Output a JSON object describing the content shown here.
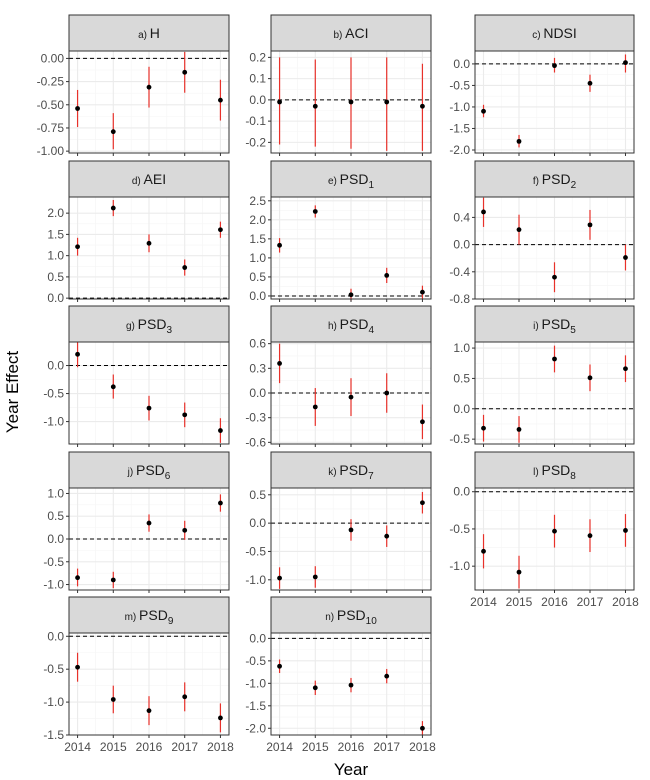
{
  "chart_data": {
    "type": "scatter",
    "title": "",
    "xlabel": "Year",
    "ylabel": "Year Effect",
    "x": [
      "2014",
      "2015",
      "2016",
      "2017",
      "2018"
    ],
    "colors": {
      "point": "#000000",
      "errorbar": "#e8312a",
      "strip_bg": "#d9d9d9",
      "grid_major": "#ebebeb",
      "grid_minor": "#f5f5f5",
      "refline": "#000000"
    },
    "panels": [
      {
        "prefix": "a)",
        "name": "H",
        "sub": "",
        "ylim": [
          -1.02,
          0.08
        ],
        "ticks": [
          0.0,
          -0.25,
          -0.5,
          -0.75,
          -1.0
        ],
        "tick_labels": [
          "0.00",
          "-0.25",
          "-0.50",
          "-0.75",
          "-1.00"
        ],
        "values": [
          -0.54,
          -0.79,
          -0.31,
          -0.15,
          -0.45
        ],
        "lower": [
          -0.74,
          -0.98,
          -0.53,
          -0.37,
          -0.67
        ],
        "upper": [
          -0.34,
          -0.59,
          -0.09,
          0.07,
          -0.23
        ]
      },
      {
        "prefix": "b)",
        "name": "ACI",
        "sub": "",
        "ylim": [
          -0.25,
          0.23
        ],
        "ticks": [
          0.2,
          0.1,
          0.0,
          -0.1,
          -0.2
        ],
        "tick_labels": [
          "0.2",
          "0.1",
          "0.0",
          "-0.1",
          "-0.2"
        ],
        "values": [
          -0.01,
          -0.03,
          -0.01,
          -0.01,
          -0.03
        ],
        "lower": [
          -0.21,
          -0.22,
          -0.23,
          -0.24,
          -0.24
        ],
        "upper": [
          0.2,
          0.19,
          0.2,
          0.2,
          0.17
        ]
      },
      {
        "prefix": "c)",
        "name": "NDSI",
        "sub": "",
        "ylim": [
          -2.07,
          0.3
        ],
        "ticks": [
          0.0,
          -0.5,
          -1.0,
          -1.5,
          -2.0
        ],
        "tick_labels": [
          "0.0",
          "-0.5",
          "-1.0",
          "-1.5",
          "-2.0"
        ],
        "values": [
          -1.1,
          -1.8,
          -0.04,
          -0.45,
          0.03
        ],
        "lower": [
          -1.24,
          -1.94,
          -0.2,
          -0.65,
          -0.2
        ],
        "upper": [
          -0.95,
          -1.65,
          0.14,
          -0.25,
          0.22
        ]
      },
      {
        "prefix": "d)",
        "name": "AEI",
        "sub": "",
        "ylim": [
          -0.02,
          2.38
        ],
        "ticks": [
          2.0,
          1.5,
          1.0,
          0.5,
          0.0
        ],
        "tick_labels": [
          "2.0",
          "1.5",
          "1.0",
          "0.5",
          "0.0"
        ],
        "values": [
          1.21,
          2.12,
          1.29,
          0.72,
          1.61
        ],
        "lower": [
          1.0,
          1.93,
          1.08,
          0.53,
          1.42
        ],
        "upper": [
          1.42,
          2.31,
          1.5,
          0.91,
          1.8
        ]
      },
      {
        "prefix": "e)",
        "name": "PSD",
        "sub": "1",
        "ylim": [
          -0.08,
          2.6
        ],
        "ticks": [
          2.5,
          2.0,
          1.5,
          1.0,
          0.5,
          0.0
        ],
        "tick_labels": [
          "2.5",
          "2.0",
          "1.5",
          "1.0",
          "0.5",
          "0.0"
        ],
        "values": [
          1.33,
          2.22,
          0.03,
          0.54,
          0.1
        ],
        "lower": [
          1.14,
          2.06,
          -0.13,
          0.34,
          -0.07
        ],
        "upper": [
          1.52,
          2.38,
          0.19,
          0.74,
          0.27
        ]
      },
      {
        "prefix": "f)",
        "name": "PSD",
        "sub": "2",
        "ylim": [
          -0.8,
          0.7
        ],
        "ticks": [
          0.4,
          0.0,
          -0.4,
          -0.8
        ],
        "tick_labels": [
          "0.4",
          "0.0",
          "-0.4",
          "-0.8"
        ],
        "values": [
          0.48,
          0.22,
          -0.48,
          0.29,
          -0.19
        ],
        "lower": [
          0.26,
          0.0,
          -0.7,
          0.07,
          -0.38
        ],
        "upper": [
          0.69,
          0.44,
          -0.26,
          0.51,
          0.0
        ]
      },
      {
        "prefix": "g)",
        "name": "PSD",
        "sub": "3",
        "ylim": [
          -1.4,
          0.42
        ],
        "ticks": [
          0.0,
          -0.5,
          -1.0
        ],
        "tick_labels": [
          "0.0",
          "-0.5",
          "-1.0"
        ],
        "values": [
          0.2,
          -0.38,
          -0.76,
          -0.88,
          -1.16
        ],
        "lower": [
          -0.03,
          -0.59,
          -0.98,
          -1.1,
          -1.38
        ],
        "upper": [
          0.42,
          -0.16,
          -0.54,
          -0.66,
          -0.94
        ]
      },
      {
        "prefix": "h)",
        "name": "PSD",
        "sub": "4",
        "ylim": [
          -0.62,
          0.62
        ],
        "ticks": [
          0.6,
          0.3,
          0.0,
          -0.3,
          -0.6
        ],
        "tick_labels": [
          "0.6",
          "0.3",
          "0.0",
          "-0.3",
          "-0.6"
        ],
        "values": [
          0.36,
          -0.17,
          -0.05,
          0.0,
          -0.35
        ],
        "lower": [
          0.12,
          -0.4,
          -0.28,
          -0.24,
          -0.56
        ],
        "upper": [
          0.6,
          0.06,
          0.18,
          0.24,
          -0.14
        ]
      },
      {
        "prefix": "i)",
        "name": "PSD",
        "sub": "5",
        "ylim": [
          -0.58,
          1.1
        ],
        "ticks": [
          1.0,
          0.5,
          0.0,
          -0.5
        ],
        "tick_labels": [
          "1.0",
          "0.5",
          "0.0",
          "-0.5"
        ],
        "values": [
          -0.32,
          -0.34,
          0.82,
          0.51,
          0.66
        ],
        "lower": [
          -0.54,
          -0.56,
          0.6,
          0.29,
          0.44
        ],
        "upper": [
          -0.1,
          -0.12,
          1.04,
          0.73,
          0.88
        ]
      },
      {
        "prefix": "j)",
        "name": "PSD",
        "sub": "6",
        "ylim": [
          -1.12,
          1.12
        ],
        "ticks": [
          1.0,
          0.5,
          0.0,
          -0.5,
          -1.0
        ],
        "tick_labels": [
          "1.0",
          "0.5",
          "0.0",
          "-0.5",
          "-1.0"
        ],
        "values": [
          -0.85,
          -0.9,
          0.35,
          0.19,
          0.79
        ],
        "lower": [
          -1.04,
          -1.08,
          0.16,
          -0.02,
          0.6
        ],
        "upper": [
          -0.65,
          -0.72,
          0.54,
          0.4,
          0.98
        ]
      },
      {
        "prefix": "k)",
        "name": "PSD",
        "sub": "7",
        "ylim": [
          -1.18,
          0.62
        ],
        "ticks": [
          0.5,
          0.0,
          -0.5,
          -1.0
        ],
        "tick_labels": [
          "0.5",
          "0.0",
          "-0.5",
          "-1.0"
        ],
        "values": [
          -0.97,
          -0.95,
          -0.12,
          -0.23,
          0.36
        ],
        "lower": [
          -1.16,
          -1.14,
          -0.31,
          -0.42,
          0.17
        ],
        "upper": [
          -0.78,
          -0.76,
          0.07,
          -0.04,
          0.55
        ]
      },
      {
        "prefix": "l)",
        "name": "PSD",
        "sub": "8",
        "ylim": [
          -1.32,
          0.05
        ],
        "ticks": [
          0.0,
          -0.5,
          -1.0
        ],
        "tick_labels": [
          "0.0",
          "-0.5",
          "-1.0"
        ],
        "values": [
          -0.8,
          -1.08,
          -0.53,
          -0.59,
          -0.52
        ],
        "lower": [
          -1.03,
          -1.3,
          -0.75,
          -0.81,
          -0.74
        ],
        "upper": [
          -0.57,
          -0.86,
          -0.31,
          -0.37,
          -0.3
        ]
      },
      {
        "prefix": "m)",
        "name": "PSD",
        "sub": "9",
        "ylim": [
          -1.5,
          0.05
        ],
        "ticks": [
          0.0,
          -0.5,
          -1.0,
          -1.5
        ],
        "tick_labels": [
          "0.0",
          "-0.5",
          "-1.0",
          "-1.5"
        ],
        "values": [
          -0.47,
          -0.96,
          -1.13,
          -0.92,
          -1.24
        ],
        "lower": [
          -0.69,
          -1.17,
          -1.35,
          -1.14,
          -1.46
        ],
        "upper": [
          -0.25,
          -0.75,
          -0.91,
          -0.7,
          -1.02
        ]
      },
      {
        "prefix": "n)",
        "name": "PSD",
        "sub": "10",
        "ylim": [
          -2.15,
          0.12
        ],
        "ticks": [
          0.0,
          -0.5,
          -1.0,
          -1.5,
          -2.0
        ],
        "tick_labels": [
          "0.0",
          "-0.5",
          "-1.0",
          "-1.5",
          "-2.0"
        ],
        "values": [
          -0.62,
          -1.1,
          -1.04,
          -0.84,
          -2.0
        ],
        "lower": [
          -0.77,
          -1.26,
          -1.2,
          -1.0,
          -2.16
        ],
        "upper": [
          -0.47,
          -0.94,
          -0.88,
          -0.68,
          -1.84
        ]
      }
    ]
  }
}
